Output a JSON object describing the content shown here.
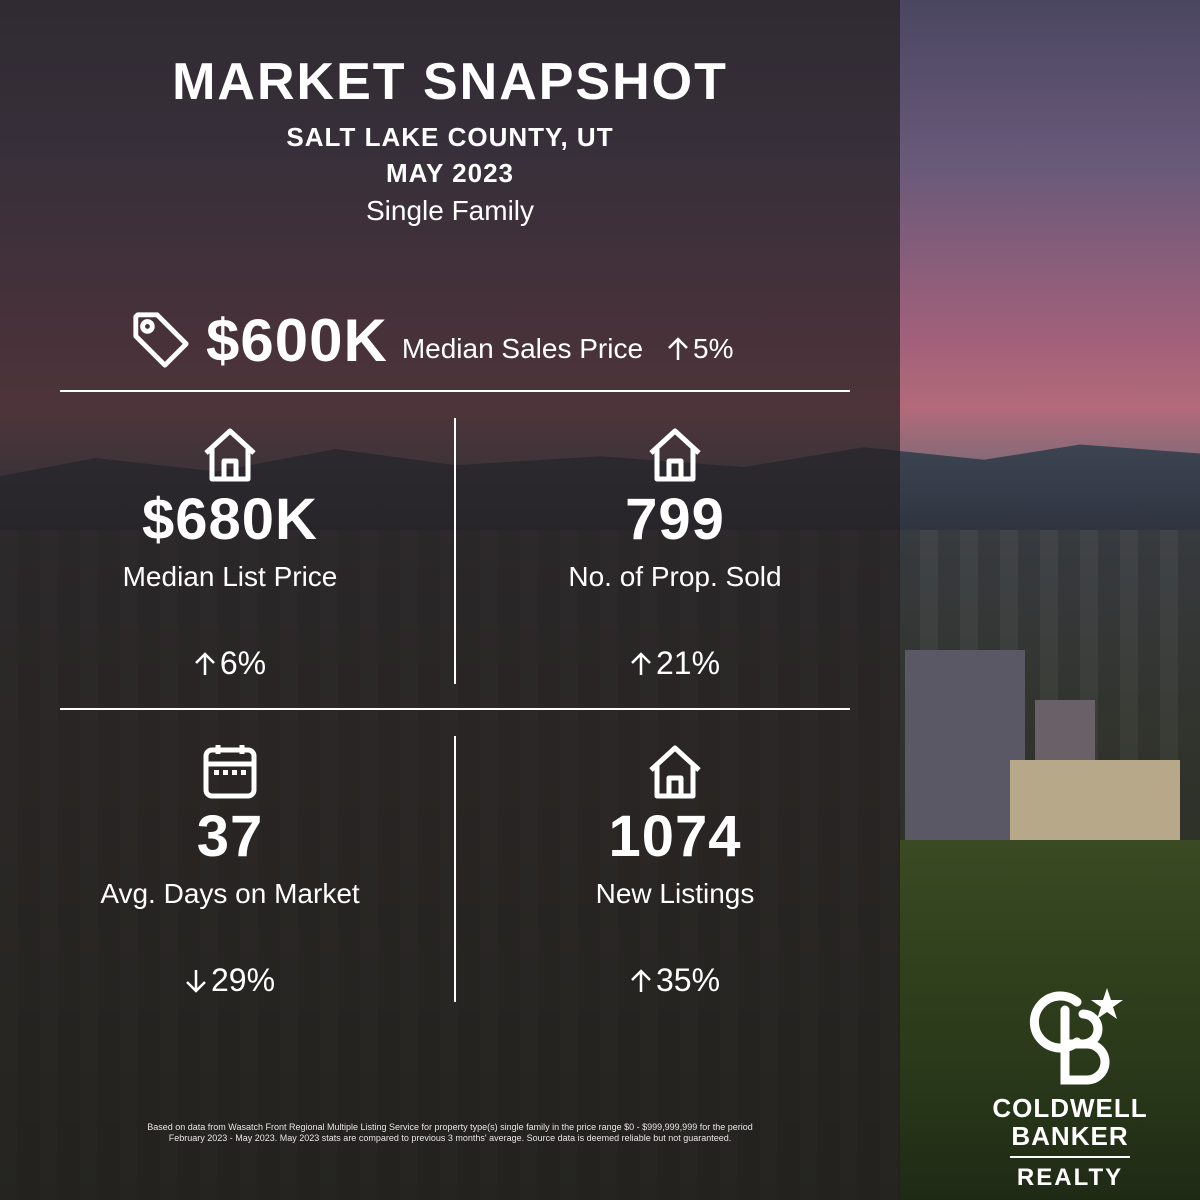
{
  "header": {
    "title": "MARKET SNAPSHOT",
    "location": "SALT LAKE COUNTY, UT",
    "period": "MAY 2023",
    "property_type": "Single Family"
  },
  "headline": {
    "icon": "price-tag-icon",
    "value": "$600K",
    "label": "Median Sales Price",
    "change": "5%",
    "direction": "up"
  },
  "stats": [
    {
      "icon": "house-icon",
      "value": "$680K",
      "label": "Median List Price",
      "change": "6%",
      "direction": "up"
    },
    {
      "icon": "house-icon",
      "value": "799",
      "label": "No. of Prop. Sold",
      "change": "21%",
      "direction": "up"
    },
    {
      "icon": "calendar-icon",
      "value": "37",
      "label": "Avg. Days on Market",
      "change": "29%",
      "direction": "down"
    },
    {
      "icon": "house-icon",
      "value": "1074",
      "label": "New Listings",
      "change": "35%",
      "direction": "up"
    }
  ],
  "disclaimer": "Based on data from Wasatch Front Regional Multiple Listing Service for property type(s) single family in the price range $0 - $999,999,999 for the period February 2023 - May 2023. May 2023 stats are compared to previous 3 months' average. Source data is deemed reliable but not guaranteed.",
  "brand": {
    "line1": "COLDWELL",
    "line2": "BANKER",
    "line3": "REALTY"
  }
}
